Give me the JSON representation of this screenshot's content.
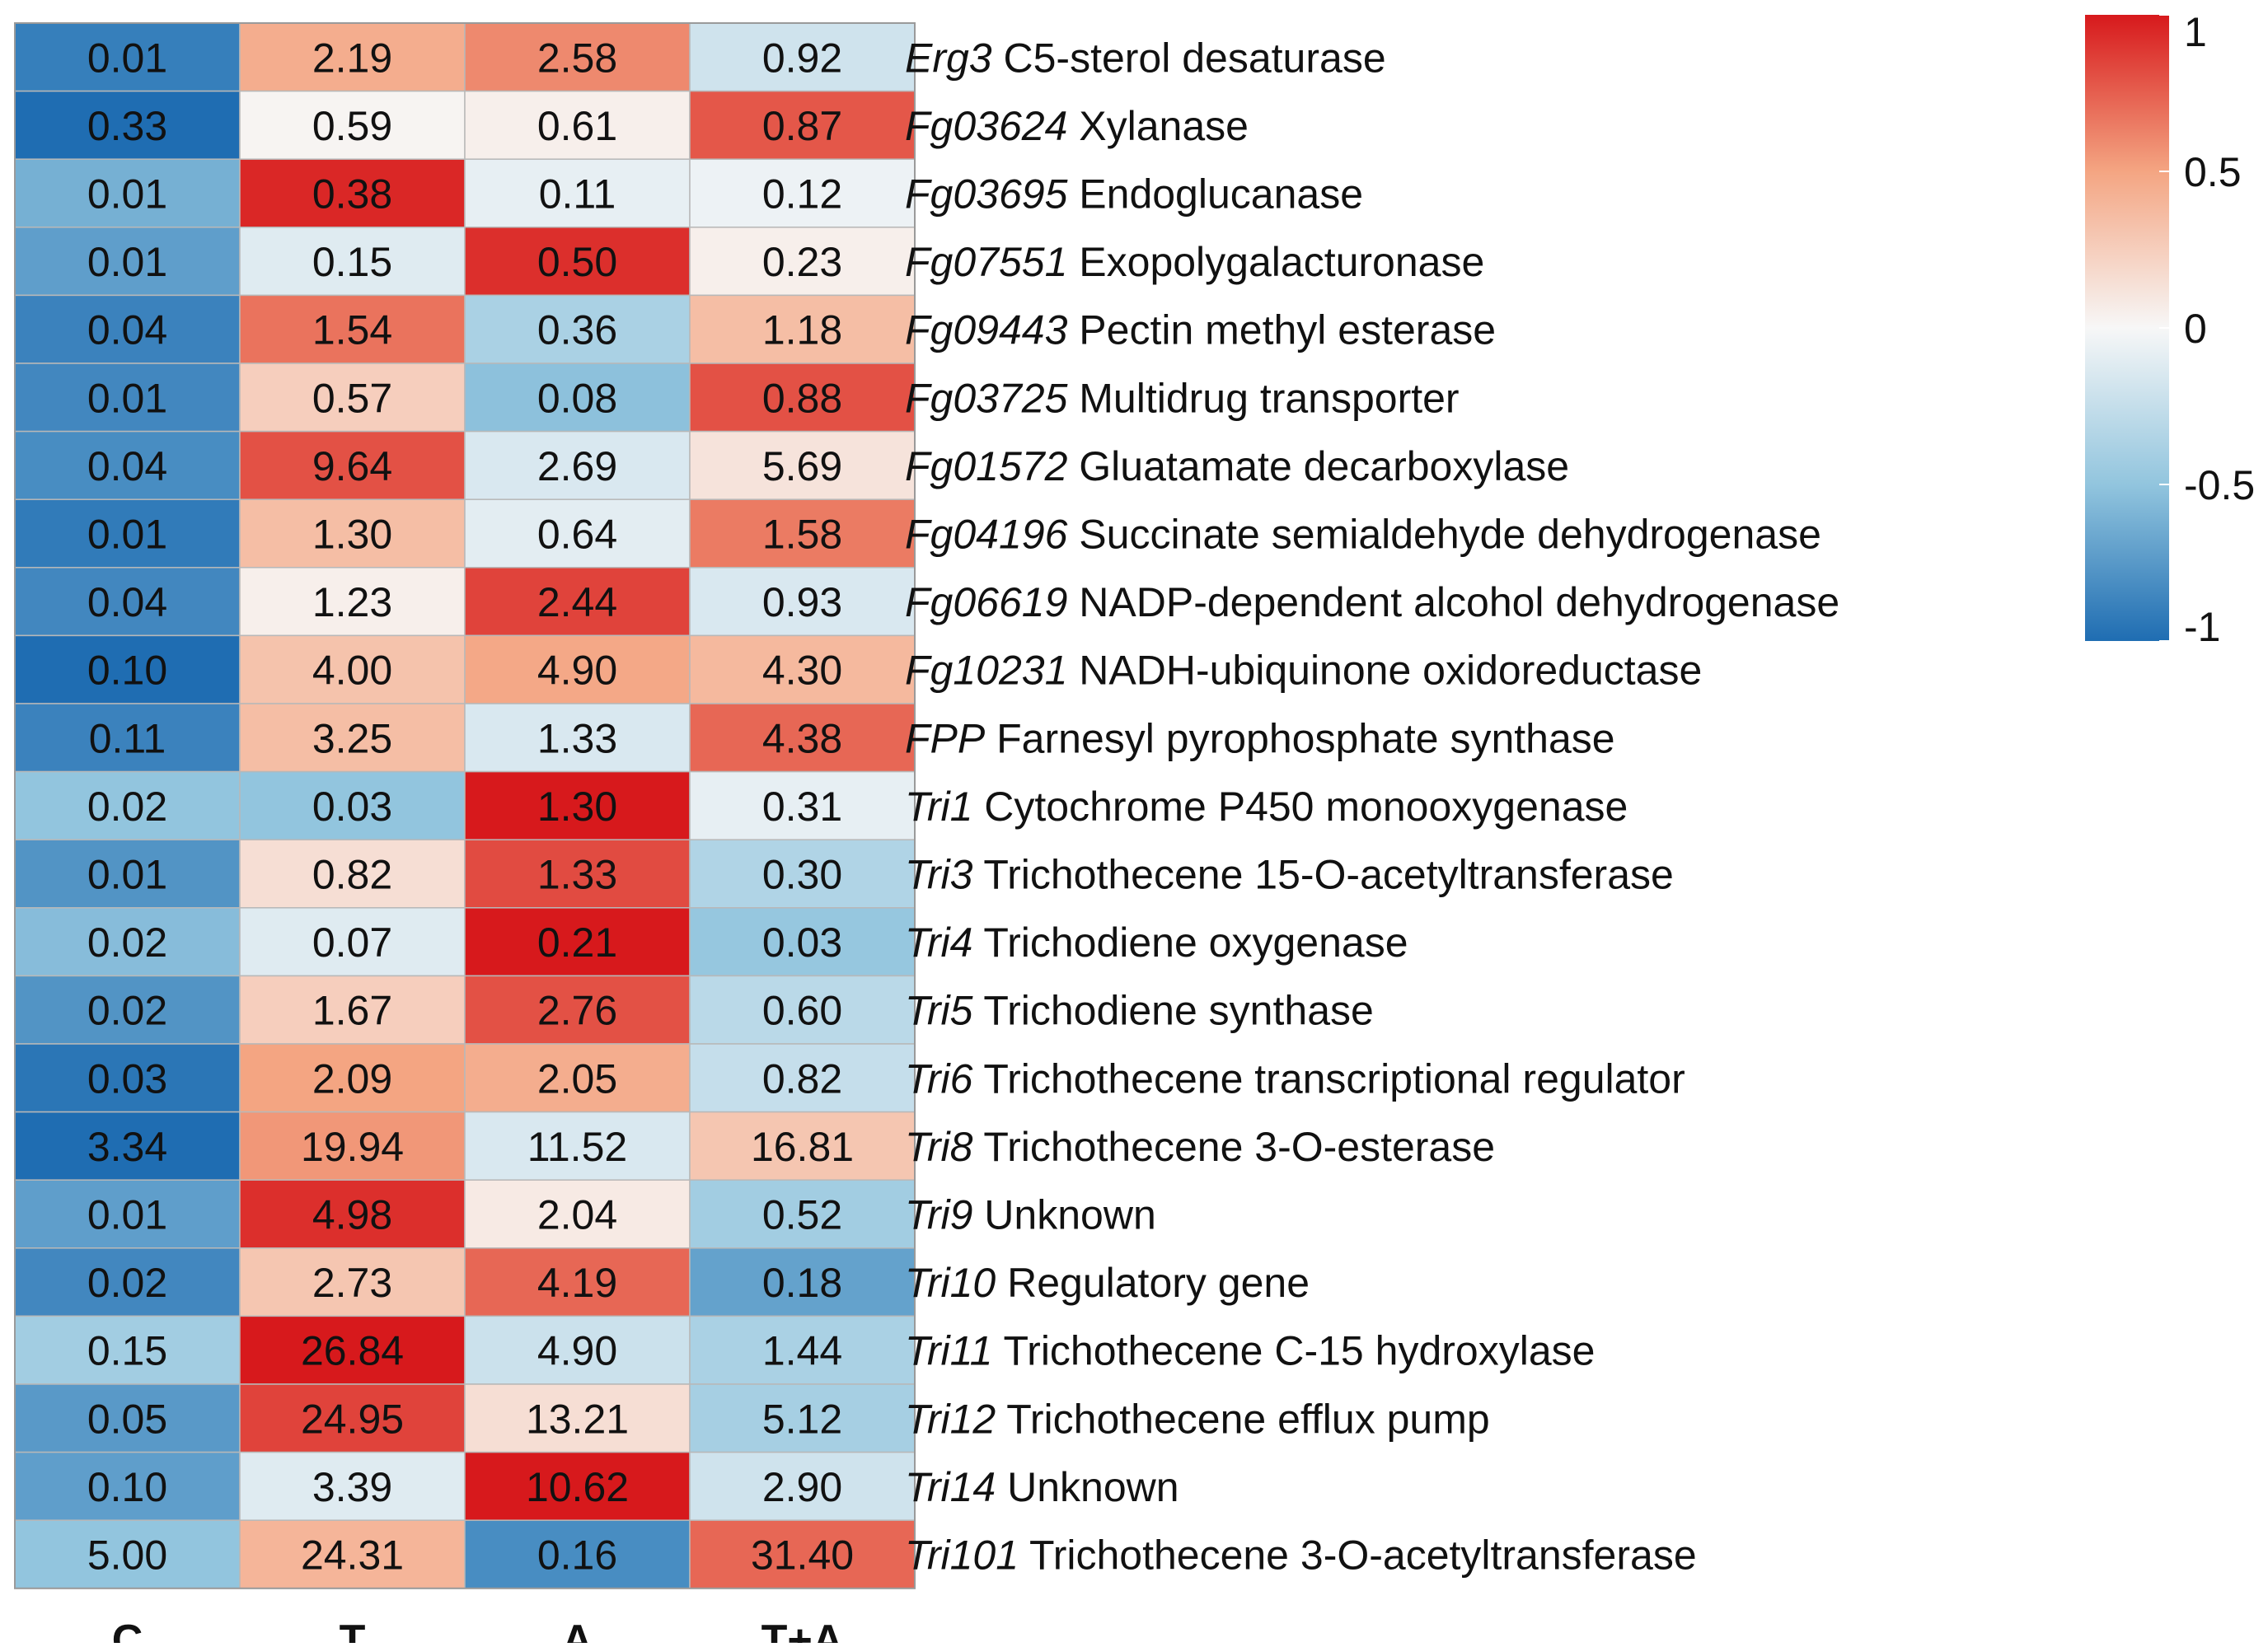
{
  "chart_data": {
    "type": "heatmap",
    "columns": [
      "C",
      "T",
      "A",
      "T+A"
    ],
    "rows": [
      {
        "gene": "Erg3",
        "description": "C5-sterol desaturase",
        "labels": [
          "0.01",
          "2.19",
          "2.58",
          "0.92"
        ],
        "scaled": [
          -0.9,
          0.45,
          0.6,
          -0.2
        ]
      },
      {
        "gene": "Fg03624",
        "description": "Xylanase",
        "labels": [
          "0.33",
          "0.59",
          "0.61",
          "0.87"
        ],
        "scaled": [
          -1.0,
          0.02,
          0.05,
          0.78
        ]
      },
      {
        "gene": "Fg03695",
        "description": "Endoglucanase",
        "labels": [
          "0.01",
          "0.38",
          "0.11",
          "0.12"
        ],
        "scaled": [
          -0.62,
          0.95,
          -0.08,
          -0.05
        ]
      },
      {
        "gene": "Fg07551",
        "description": "Exopolygalacturonase",
        "labels": [
          "0.01",
          "0.15",
          "0.50",
          "0.23"
        ],
        "scaled": [
          -0.72,
          -0.12,
          0.92,
          0.05
        ]
      },
      {
        "gene": "Fg09443",
        "description": "Pectin methyl esterase",
        "labels": [
          "0.04",
          "1.54",
          "0.36",
          "1.18"
        ],
        "scaled": [
          -0.88,
          0.68,
          -0.38,
          0.35
        ]
      },
      {
        "gene": "Fg03725",
        "description": "Multidrug transporter",
        "labels": [
          "0.01",
          "0.57",
          "0.08",
          "0.88"
        ],
        "scaled": [
          -0.85,
          0.25,
          -0.52,
          0.8
        ]
      },
      {
        "gene": "Fg01572",
        "description": "Gluatamate decarboxylase",
        "labels": [
          "0.04",
          "9.64",
          "2.69",
          "5.69"
        ],
        "scaled": [
          -0.82,
          0.8,
          -0.15,
          0.12
        ]
      },
      {
        "gene": "Fg04196",
        "description": "Succinate semialdehyde dehydrogenase",
        "labels": [
          "0.01",
          "1.30",
          "0.64",
          "1.58"
        ],
        "scaled": [
          -0.92,
          0.35,
          -0.1,
          0.65
        ]
      },
      {
        "gene": "Fg06619",
        "description": "NADP-dependent alcohol dehydrogenase",
        "labels": [
          "0.04",
          "1.23",
          "2.44",
          "0.93"
        ],
        "scaled": [
          -0.85,
          0.05,
          0.85,
          -0.15
        ]
      },
      {
        "gene": "Fg10231",
        "description": "NADH-ubiquinone oxidoreductase",
        "labels": [
          "0.10",
          "4.00",
          "4.90",
          "4.30"
        ],
        "scaled": [
          -1.0,
          0.32,
          0.48,
          0.38
        ]
      },
      {
        "gene": "FPP",
        "description": "Farnesyl pyrophosphate synthase",
        "labels": [
          "0.11",
          "3.25",
          "1.33",
          "4.38"
        ],
        "scaled": [
          -0.88,
          0.35,
          -0.15,
          0.72
        ]
      },
      {
        "gene": "Tri1",
        "description": "Cytochrome P450 monooxygenase",
        "labels": [
          "0.02",
          "0.03",
          "1.30",
          "0.31"
        ],
        "scaled": [
          -0.5,
          -0.5,
          1.0,
          -0.08
        ]
      },
      {
        "gene": "Tri3",
        "description": "Trichothecene 15-O-acetyltransferase",
        "labels": [
          "0.01",
          "0.82",
          "1.33",
          "0.30"
        ],
        "scaled": [
          -0.78,
          0.15,
          0.82,
          -0.35
        ]
      },
      {
        "gene": "Tri4",
        "description": "Trichodiene oxygenase",
        "labels": [
          "0.02",
          "0.07",
          "0.21",
          "0.03"
        ],
        "scaled": [
          -0.55,
          -0.12,
          1.0,
          -0.48
        ]
      },
      {
        "gene": "Tri5",
        "description": "Trichodiene synthase",
        "labels": [
          "0.02",
          "1.67",
          "2.76",
          "0.60"
        ],
        "scaled": [
          -0.78,
          0.25,
          0.8,
          -0.3
        ]
      },
      {
        "gene": "Tri6",
        "description": "Trichothecene transcriptional regulator",
        "labels": [
          "0.03",
          "2.09",
          "2.05",
          "0.82"
        ],
        "scaled": [
          -0.95,
          0.5,
          0.45,
          -0.25
        ]
      },
      {
        "gene": "Tri8",
        "description": "Trichothecene 3-O-esterase",
        "labels": [
          "3.34",
          "19.94",
          "11.52",
          "16.81"
        ],
        "scaled": [
          -1.0,
          0.55,
          -0.15,
          0.3
        ]
      },
      {
        "gene": "Tri9",
        "description": "Unknown",
        "labels": [
          "0.01",
          "4.98",
          "2.04",
          "0.52"
        ],
        "scaled": [
          -0.72,
          0.92,
          0.08,
          -0.42
        ]
      },
      {
        "gene": "Tri10",
        "description": "Regulatory gene",
        "labels": [
          "0.02",
          "2.73",
          "4.19",
          "0.18"
        ],
        "scaled": [
          -0.85,
          0.3,
          0.72,
          -0.7
        ]
      },
      {
        "gene": "Tri11",
        "description": "Trichothecene C-15 hydroxylase",
        "labels": [
          "0.15",
          "26.84",
          "4.90",
          "1.44"
        ],
        "scaled": [
          -0.42,
          1.0,
          -0.22,
          -0.38
        ]
      },
      {
        "gene": "Tri12",
        "description": "Trichothecene efflux pump",
        "labels": [
          "0.05",
          "24.95",
          "13.21",
          "5.12"
        ],
        "scaled": [
          -0.75,
          0.85,
          0.15,
          -0.4
        ]
      },
      {
        "gene": "Tri14",
        "description": "Unknown",
        "labels": [
          "0.10",
          "3.39",
          "10.62",
          "2.90"
        ],
        "scaled": [
          -0.72,
          -0.12,
          1.0,
          -0.2
        ]
      },
      {
        "gene": "Tri101",
        "description": "Trichothecene 3-O-acetyltransferase",
        "labels": [
          "5.00",
          "24.31",
          "0.16",
          "31.40"
        ],
        "scaled": [
          -0.5,
          0.4,
          -0.82,
          0.72
        ]
      }
    ],
    "color_scale": {
      "range": [
        -1,
        1
      ],
      "ticks": [
        "1",
        "0.5",
        "0",
        "-0.5",
        "-1"
      ],
      "tick_values": [
        1,
        0.5,
        0,
        -0.5,
        -1
      ],
      "colors": {
        "low": "#1f6db2",
        "mid": "#f7f7f7",
        "high": "#d7191c"
      }
    }
  }
}
